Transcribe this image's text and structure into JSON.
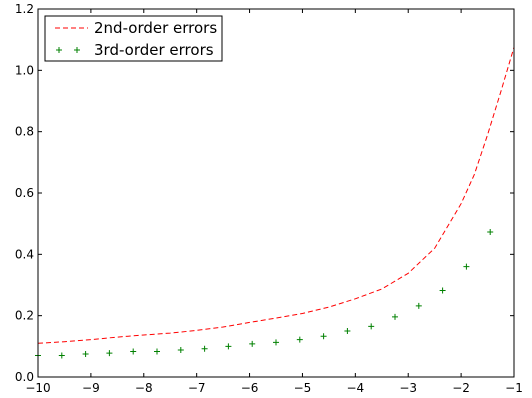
{
  "chart_data": {
    "type": "line",
    "title": "",
    "xlabel": "",
    "ylabel": "",
    "xlim": [
      -10,
      -1
    ],
    "ylim": [
      0.0,
      1.2
    ],
    "xticks": [
      -10,
      -9,
      -8,
      -7,
      -6,
      -5,
      -4,
      -3,
      -2,
      -1
    ],
    "yticks": [
      0.0,
      0.2,
      0.4,
      0.6,
      0.8,
      1.0,
      1.2
    ],
    "xtick_labels": [
      "−10",
      "−9",
      "−8",
      "−7",
      "−6",
      "−5",
      "−4",
      "−3",
      "−2",
      "−1"
    ],
    "ytick_labels": [
      "0.0",
      "0.2",
      "0.4",
      "0.6",
      "0.8",
      "1.0",
      "1.2"
    ],
    "grid": false,
    "legend_position": "top-left",
    "series": [
      {
        "name": "2nd-order errors",
        "style": "dashed-line",
        "color": "#ff0000",
        "x": [
          -10.0,
          -9.5,
          -9.0,
          -8.5,
          -8.0,
          -7.5,
          -7.0,
          -6.5,
          -6.0,
          -5.5,
          -5.0,
          -4.5,
          -4.0,
          -3.5,
          -3.0,
          -2.5,
          -2.0,
          -1.75,
          -1.5,
          -1.25,
          -1.0
        ],
        "y": [
          0.11,
          0.115,
          0.122,
          0.13,
          0.137,
          0.143,
          0.152,
          0.163,
          0.178,
          0.192,
          0.207,
          0.228,
          0.255,
          0.287,
          0.338,
          0.42,
          0.565,
          0.66,
          0.79,
          0.93,
          1.075
        ]
      },
      {
        "name": "3rd-order errors",
        "style": "plus-markers",
        "color": "#008000",
        "x": [
          -10.0,
          -9.55,
          -9.1,
          -8.65,
          -8.2,
          -7.75,
          -7.3,
          -6.85,
          -6.4,
          -5.95,
          -5.5,
          -5.05,
          -4.6,
          -4.15,
          -3.7,
          -3.25,
          -2.8,
          -2.35,
          -1.9,
          -1.45
        ],
        "y": [
          0.07,
          0.07,
          0.075,
          0.078,
          0.083,
          0.083,
          0.088,
          0.092,
          0.1,
          0.108,
          0.113,
          0.122,
          0.133,
          0.15,
          0.165,
          0.196,
          0.232,
          0.282,
          0.36,
          0.473
        ]
      }
    ]
  }
}
